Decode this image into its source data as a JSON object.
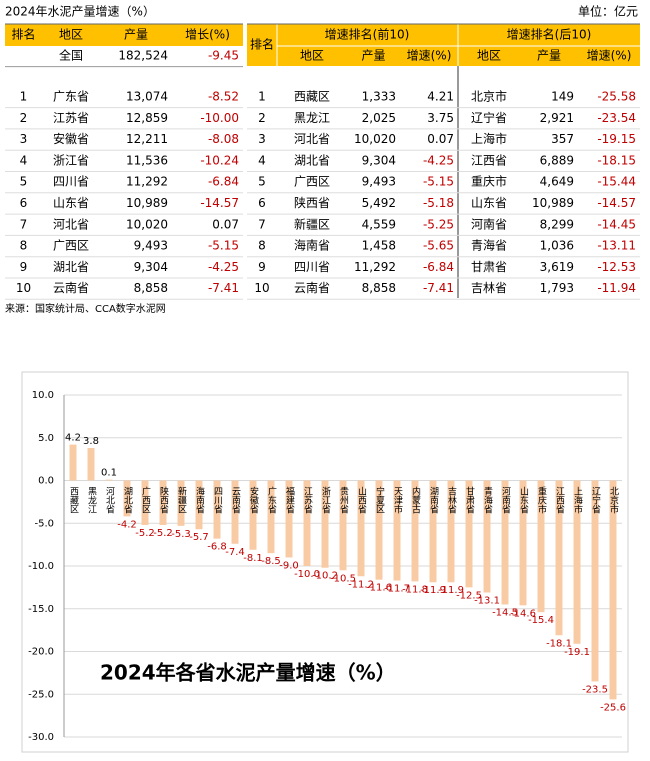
{
  "header": {
    "title": "2024年水泥产量增速（%）",
    "unit": "单位：亿元"
  },
  "left_table": {
    "columns": [
      "排名",
      "地区",
      "产量",
      "增长(%)"
    ],
    "rows": [
      [
        null,
        "全国",
        "182,524",
        "-9.45"
      ],
      [
        "1",
        "广东省",
        "13,074",
        "-8.52"
      ],
      [
        "2",
        "江苏省",
        "12,859",
        "-10.00"
      ],
      [
        "3",
        "安徽省",
        "12,211",
        "-8.08"
      ],
      [
        "4",
        "浙江省",
        "11,536",
        "-10.24"
      ],
      [
        "5",
        "四川省",
        "11,292",
        "-6.84"
      ],
      [
        "6",
        "山东省",
        "10,989",
        "-14.57"
      ],
      [
        "7",
        "河北省",
        "10,020",
        "0.07"
      ],
      [
        "8",
        "广西区",
        "9,493",
        "-5.15"
      ],
      [
        "9",
        "湖北省",
        "9,304",
        "-4.25"
      ],
      [
        "10",
        "云南省",
        "8,858",
        "-7.41"
      ]
    ]
  },
  "right_table": {
    "rank_header": "排名",
    "groups": [
      "增速排名(前10)",
      "增速排名(后10)"
    ],
    "columns": [
      "地区",
      "产量",
      "增速(%)",
      "地区",
      "产量",
      "增速(%)"
    ],
    "rows": [
      [
        "1",
        "西藏区",
        "1,333",
        "4.21",
        "北京市",
        "149",
        "-25.58"
      ],
      [
        "2",
        "黑龙江",
        "2,025",
        "3.75",
        "辽宁省",
        "2,921",
        "-23.54"
      ],
      [
        "3",
        "河北省",
        "10,020",
        "0.07",
        "上海市",
        "357",
        "-19.15"
      ],
      [
        "4",
        "湖北省",
        "9,304",
        "-4.25",
        "江西省",
        "6,889",
        "-18.15"
      ],
      [
        "5",
        "广西区",
        "9,493",
        "-5.15",
        "重庆市",
        "4,649",
        "-15.44"
      ],
      [
        "6",
        "陕西省",
        "5,492",
        "-5.18",
        "山东省",
        "10,989",
        "-14.57"
      ],
      [
        "7",
        "新疆区",
        "4,559",
        "-5.25",
        "河南省",
        "8,299",
        "-14.45"
      ],
      [
        "8",
        "海南省",
        "1,458",
        "-5.65",
        "青海省",
        "1,036",
        "-13.11"
      ],
      [
        "9",
        "四川省",
        "11,292",
        "-6.84",
        "甘肃省",
        "3,619",
        "-12.53"
      ],
      [
        "10",
        "云南省",
        "8,858",
        "-7.41",
        "吉林省",
        "1,793",
        "-11.94"
      ]
    ]
  },
  "source": "来源：国家统计局、CCA数字水泥网",
  "chart_data": {
    "type": "bar",
    "title": "2024年各省水泥产量增速（%）",
    "categories": [
      "西藏区",
      "黑龙江",
      "河北省",
      "湖北省",
      "广西区",
      "陕西省",
      "新疆区",
      "海南省",
      "四川省",
      "云南省",
      "安徽省",
      "广东省",
      "福建省",
      "江苏省",
      "浙江省",
      "贵州省",
      "山西省",
      "宁夏区",
      "天津市",
      "内蒙古",
      "湖南省",
      "吉林省",
      "甘肃省",
      "青海省",
      "河南省",
      "山东省",
      "重庆市",
      "江西省",
      "上海市",
      "辽宁省",
      "北京市"
    ],
    "values": [
      4.2,
      3.8,
      0.1,
      -4.2,
      -5.2,
      -5.2,
      -5.3,
      -5.7,
      -6.8,
      -7.4,
      -8.1,
      -8.5,
      -9.0,
      -10.0,
      -10.2,
      -10.5,
      -11.2,
      -11.6,
      -11.7,
      -11.8,
      -11.9,
      -11.9,
      -12.5,
      -13.1,
      -14.5,
      -14.6,
      -15.4,
      -18.1,
      -19.1,
      -23.5,
      -25.6
    ],
    "value_labels": [
      "4.2",
      "3.8",
      "0.1",
      "-4.2",
      "-5.2",
      "-5.2",
      "-5.3",
      "-5.7",
      "-6.8",
      "-7.4",
      "-8.1",
      "-8.5",
      "-9.0",
      "-10.0",
      "-10.2",
      "-10.5",
      "-11.2",
      "-11.6",
      "-11.7",
      "-11.8",
      "-11.9",
      "-11.9",
      "-12.5",
      "-13.1",
      "-14.5",
      "-14.6",
      "-15.4",
      "-18.1",
      "-19.1",
      "-23.5",
      "-25.6"
    ],
    "color": "#f8cba4",
    "positive_label_color": "#000000",
    "negative_label_color": "#c00000",
    "ylim": [
      -30,
      10
    ],
    "yticks": [
      {
        "value": 10,
        "label": "10.0"
      },
      {
        "value": 5,
        "label": "5.0"
      },
      {
        "value": 0,
        "label": "0.0"
      },
      {
        "value": -5,
        "label": "-5.0"
      },
      {
        "value": -10,
        "label": "-10.0"
      },
      {
        "value": -15,
        "label": "-15.0"
      },
      {
        "value": -20,
        "label": "-20.0"
      },
      {
        "value": -25,
        "label": "-25.0"
      },
      {
        "value": -30,
        "label": "-30.0"
      }
    ],
    "grid": true
  }
}
